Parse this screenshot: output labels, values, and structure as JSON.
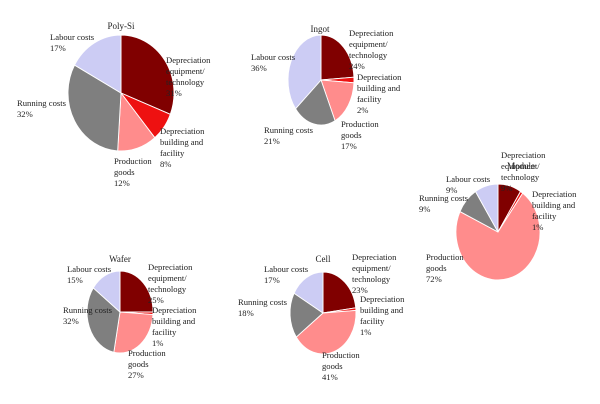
{
  "chart_data": [
    {
      "type": "pie",
      "title": "Poly-Si",
      "categories": [
        "Depreciation equipment/ technology",
        "Depreciation building and facility",
        "Production goods",
        "Running costs",
        "Labour costs"
      ],
      "values": [
        31,
        8,
        12,
        32,
        17
      ],
      "value_labels": [
        "31%",
        "8%",
        "12%",
        "32%",
        "17%"
      ],
      "label_lines": [
        [
          "Depreciation",
          "equipment/",
          "technology",
          "31%"
        ],
        [
          "Depreciation",
          "building and",
          "facility",
          "8%"
        ],
        [
          "Production",
          "goods",
          "12%"
        ],
        [
          "Running costs",
          "32%"
        ],
        [
          "Labour costs",
          "17%"
        ]
      ]
    },
    {
      "type": "pie",
      "title": "Ingot",
      "categories": [
        "Depreciation equipment/ technology",
        "Depreciation building and facility",
        "Production goods",
        "Running costs",
        "Labour costs"
      ],
      "values": [
        24,
        2,
        17,
        21,
        36
      ],
      "value_labels": [
        "24%",
        "2%",
        "17%",
        "21%",
        "36%"
      ],
      "label_lines": [
        [
          "Depreciation",
          "equipment/",
          "technology",
          "24%"
        ],
        [
          "Depreciation",
          "building and",
          "facility",
          "2%"
        ],
        [
          "Production",
          "goods",
          "17%"
        ],
        [
          "Running costs",
          "21%"
        ],
        [
          "Labour costs",
          "36%"
        ]
      ]
    },
    {
      "type": "pie",
      "title": "Module",
      "categories": [
        "Depreciation equipment/ technology",
        "Depreciation building and facility",
        "Production goods",
        "Running costs",
        "Labour costs"
      ],
      "values": [
        9,
        1,
        72,
        9,
        9
      ],
      "value_labels": [
        "9%",
        "1%",
        "72%",
        "9%",
        "9%"
      ],
      "label_lines": [
        [
          "Depreciation",
          "equipment/",
          "technology",
          "9%"
        ],
        [
          "Depreciation",
          "building and",
          "facility",
          "1%"
        ],
        [
          "Production",
          "goods",
          "72%"
        ],
        [
          "Running costs",
          "9%"
        ],
        [
          "Labour costs",
          "9%"
        ]
      ]
    },
    {
      "type": "pie",
      "title": "Wafer",
      "categories": [
        "Depreciation equipment/ technology",
        "Depreciation building and facility",
        "Production goods",
        "Running costs",
        "Labour costs"
      ],
      "values": [
        25,
        1,
        27,
        32,
        15
      ],
      "value_labels": [
        "25%",
        "1%",
        "27%",
        "32%",
        "15%"
      ],
      "label_lines": [
        [
          "Depreciation",
          "equipment/",
          "technology",
          "25%"
        ],
        [
          "Depreciation",
          "building and",
          "facility",
          "1%"
        ],
        [
          "Production",
          "goods",
          "27%"
        ],
        [
          "Running costs",
          "32%"
        ],
        [
          "Labour costs",
          "15%"
        ]
      ]
    },
    {
      "type": "pie",
      "title": "Cell",
      "categories": [
        "Depreciation equipment/ technology",
        "Depreciation building and facility",
        "Production goods",
        "Running costs",
        "Labour costs"
      ],
      "values": [
        23,
        1,
        41,
        18,
        17
      ],
      "value_labels": [
        "23%",
        "1%",
        "41%",
        "18%",
        "17%"
      ],
      "label_lines": [
        [
          "Depreciation",
          "equipment/",
          "technology",
          "23%"
        ],
        [
          "Depreciation",
          "building and",
          "facility",
          "1%"
        ],
        [
          "Production",
          "goods",
          "41%"
        ],
        [
          "Running costs",
          "18%"
        ],
        [
          "Labour costs",
          "17%"
        ]
      ]
    }
  ],
  "colors": {
    "Depreciation equipment/ technology": "#800000",
    "Depreciation building and facility": "#ee1111",
    "Production goods": "#ff8c8c",
    "Running costs": "#7f7f7f",
    "Labour costs": "#ccccf4"
  }
}
